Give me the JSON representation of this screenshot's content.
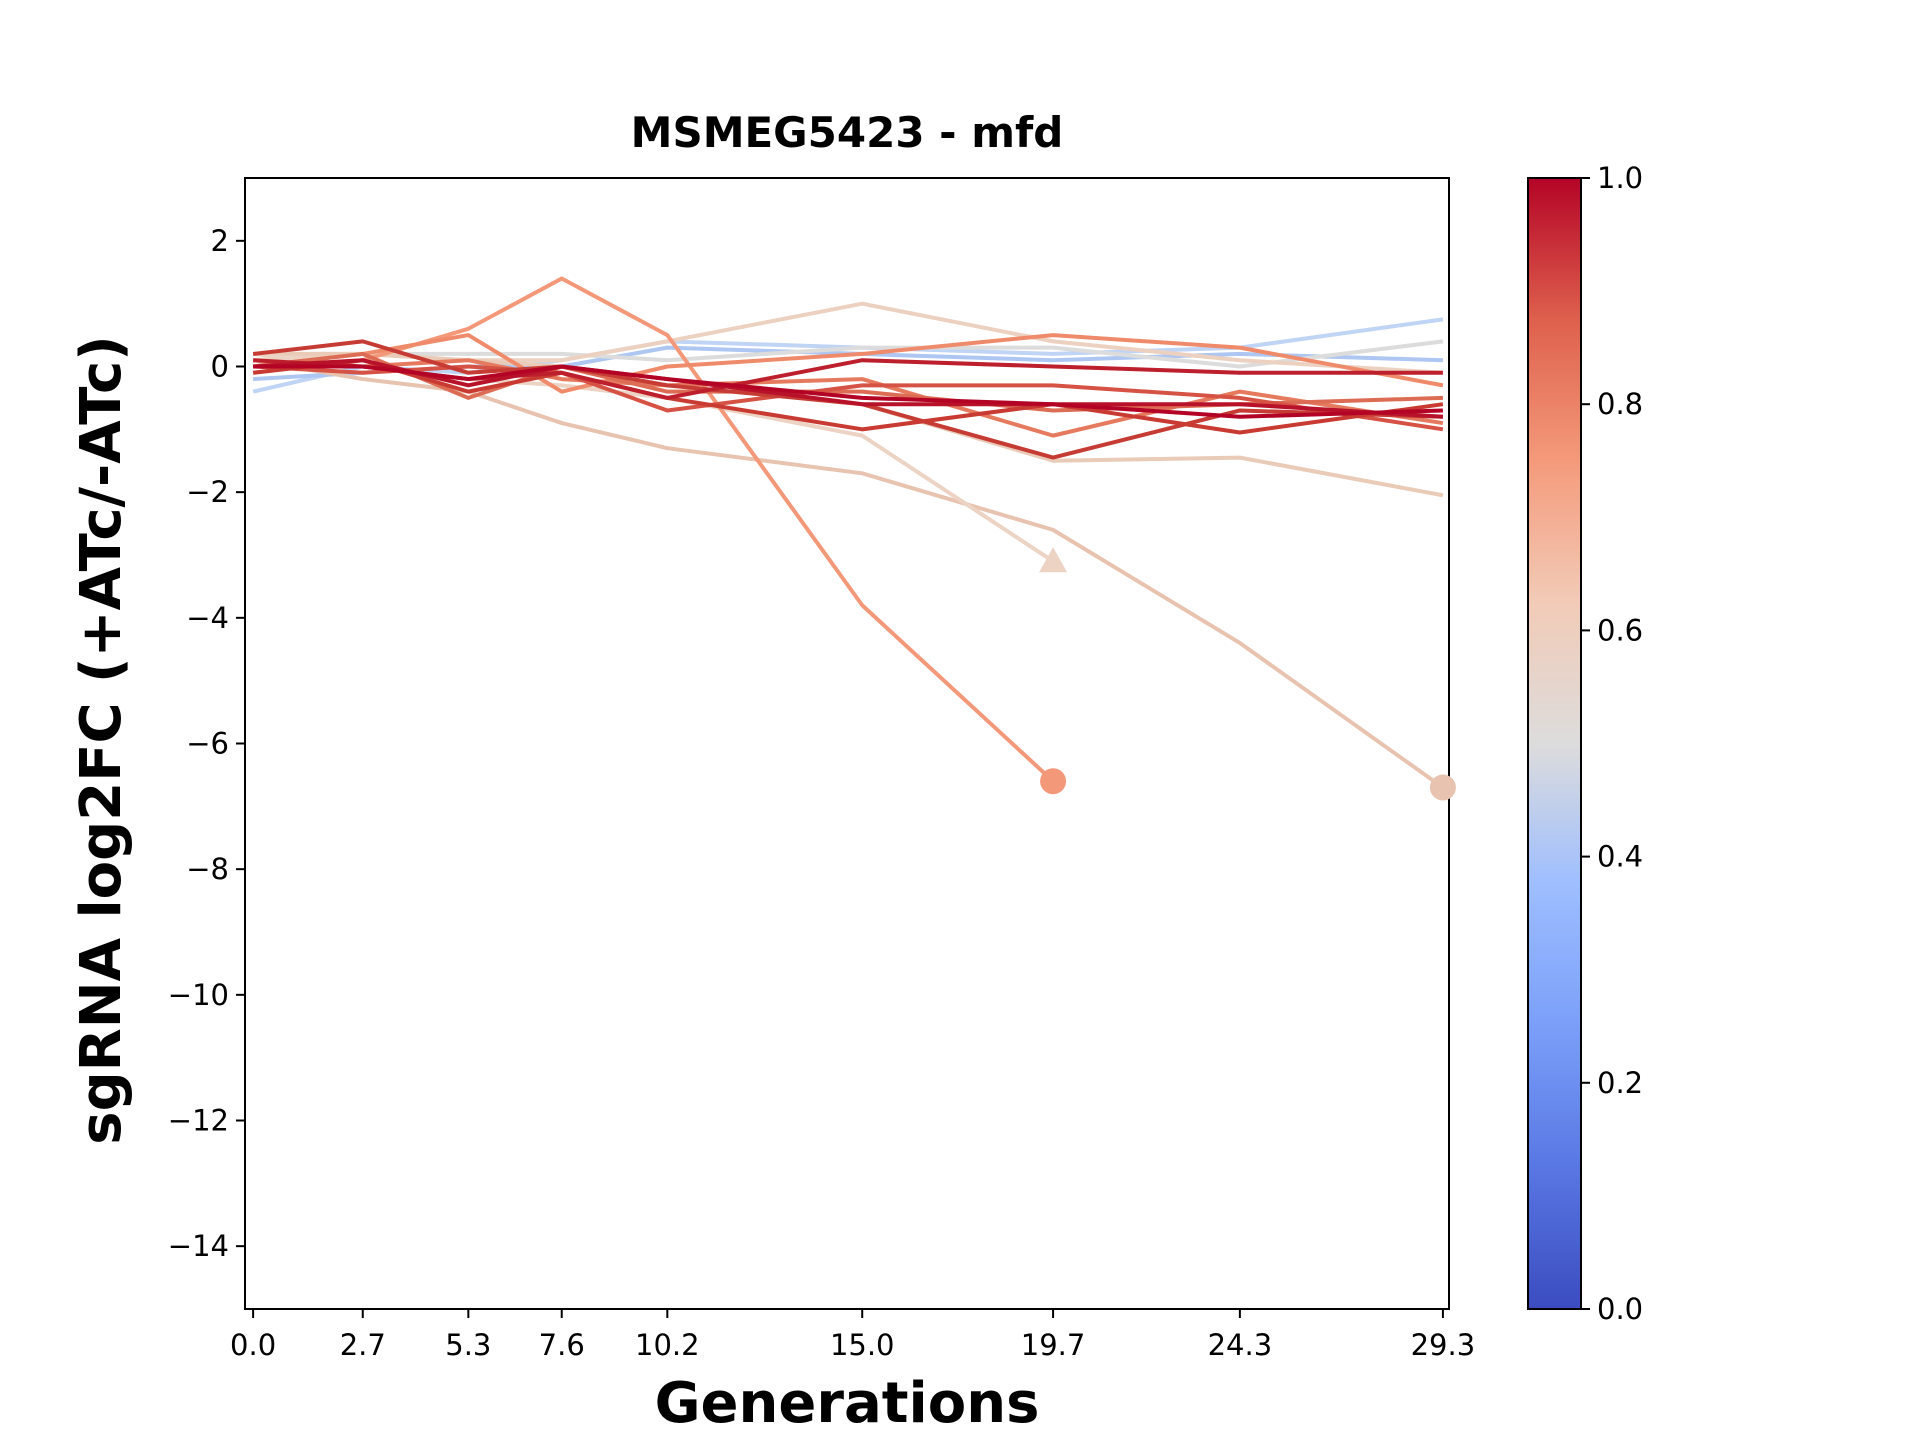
{
  "chart_data": {
    "type": "line",
    "title": "MSMEG5423 - mfd",
    "x_label": "Generations",
    "y_label": "sgRNA log2FC (+ATc/-ATc)",
    "x": [
      0.0,
      2.7,
      5.3,
      7.6,
      10.2,
      15.0,
      19.7,
      24.3,
      29.3
    ],
    "xlim": [
      -0.2,
      29.45
    ],
    "xticks": [
      {
        "value": 0,
        "label": "0.0"
      },
      2.7,
      5.3,
      7.6,
      10.2,
      {
        "value": 15,
        "label": "15.0"
      },
      19.7,
      24.3,
      29.3
    ],
    "ylim": [
      -15,
      3
    ],
    "yticks": [
      {
        "value": -14,
        "label": "−14"
      },
      {
        "value": -12,
        "label": "−12"
      },
      {
        "value": -10,
        "label": "−10"
      },
      {
        "value": -8,
        "label": "−8"
      },
      {
        "value": -6,
        "label": "−6"
      },
      {
        "value": -4,
        "label": "−4"
      },
      {
        "value": -2,
        "label": "−2"
      },
      0,
      2
    ],
    "colorbar": {
      "lim": [
        0,
        1
      ],
      "ticks": [
        {
          "value": 0,
          "label": "0.0"
        },
        {
          "value": 0.2,
          "label": "0.2"
        },
        {
          "value": 0.4,
          "label": "0.4"
        },
        {
          "value": 0.6,
          "label": "0.6"
        },
        {
          "value": 0.8,
          "label": "0.8"
        },
        {
          "value": 1,
          "label": "1.0"
        }
      ]
    },
    "series": [
      {
        "color": "#c0d4f5",
        "values": [
          -0.4,
          0.0,
          -0.1,
          0.1,
          0.4,
          0.3,
          0.2,
          0.3,
          0.75
        ]
      },
      {
        "color": "#aec7f2",
        "values": [
          -0.2,
          -0.1,
          0.0,
          0.0,
          0.3,
          0.2,
          0.1,
          0.2,
          0.1
        ]
      },
      {
        "color": "#dcdcdc",
        "values": [
          0.2,
          0.2,
          0.2,
          0.2,
          0.1,
          0.3,
          0.3,
          0.0,
          0.4
        ]
      },
      {
        "color": "#edd1c0",
        "values": [
          0.1,
          0.2,
          0.1,
          0.1,
          0.4,
          1.0,
          0.4,
          0.1,
          -0.1
        ]
      },
      {
        "color": "#e9cbb8",
        "values": [
          0.2,
          0.2,
          0.1,
          0.0,
          -0.2,
          -0.6,
          -1.5,
          -1.45,
          -2.05
        ]
      },
      {
        "color": "#e8c4b0",
        "values": [
          0.1,
          -0.2,
          -0.4,
          -0.9,
          -1.3,
          -1.7,
          -2.6,
          -4.4,
          -6.7
        ],
        "marker": "o"
      },
      {
        "color": "#ecd3c4",
        "values": [
          0.2,
          0.0,
          -0.2,
          -0.3,
          -0.5,
          -1.1,
          -3.1,
          null,
          null
        ],
        "marker": "^"
      },
      {
        "color": "#f4987a",
        "values": [
          0.0,
          0.1,
          0.6,
          1.4,
          0.5,
          -3.8,
          -6.6,
          null,
          null
        ],
        "marker": "o"
      },
      {
        "color": "#ef8b6b",
        "values": [
          0.0,
          0.2,
          0.5,
          -0.4,
          0.0,
          0.2,
          0.5,
          0.3,
          -0.3
        ]
      },
      {
        "color": "#e57a5e",
        "values": [
          0.0,
          0.0,
          0.1,
          -0.2,
          -0.3,
          -0.2,
          -1.1,
          -0.4,
          -0.9
        ]
      },
      {
        "color": "#dd6c55",
        "values": [
          0.0,
          0.2,
          -0.5,
          0.0,
          -0.4,
          -0.4,
          -0.7,
          -0.6,
          -0.5
        ]
      },
      {
        "color": "#d65244",
        "values": [
          0.0,
          -0.1,
          0.0,
          -0.1,
          -0.7,
          -0.3,
          -0.3,
          -0.5,
          -1.0
        ]
      },
      {
        "color": "#c63b34",
        "values": [
          0.2,
          0.4,
          -0.1,
          0.0,
          -0.3,
          -0.6,
          -1.45,
          -0.7,
          -0.8
        ]
      },
      {
        "color": "#c83a32",
        "values": [
          -0.1,
          0.1,
          -0.4,
          -0.1,
          -0.5,
          -1.0,
          -0.6,
          -1.05,
          -0.6
        ]
      },
      {
        "color": "#bd1f2d",
        "values": [
          0.1,
          0.0,
          -0.2,
          -0.1,
          -0.5,
          0.1,
          0.0,
          -0.1,
          -0.1
        ]
      },
      {
        "color": "#b8122a",
        "values": [
          0.0,
          0.1,
          -0.3,
          0.0,
          -0.2,
          -0.6,
          -0.6,
          -0.6,
          -0.8
        ]
      },
      {
        "color": "#b40426",
        "values": [
          0.0,
          0.0,
          -0.2,
          0.0,
          -0.2,
          -0.5,
          -0.6,
          -0.8,
          -0.7
        ]
      }
    ]
  }
}
